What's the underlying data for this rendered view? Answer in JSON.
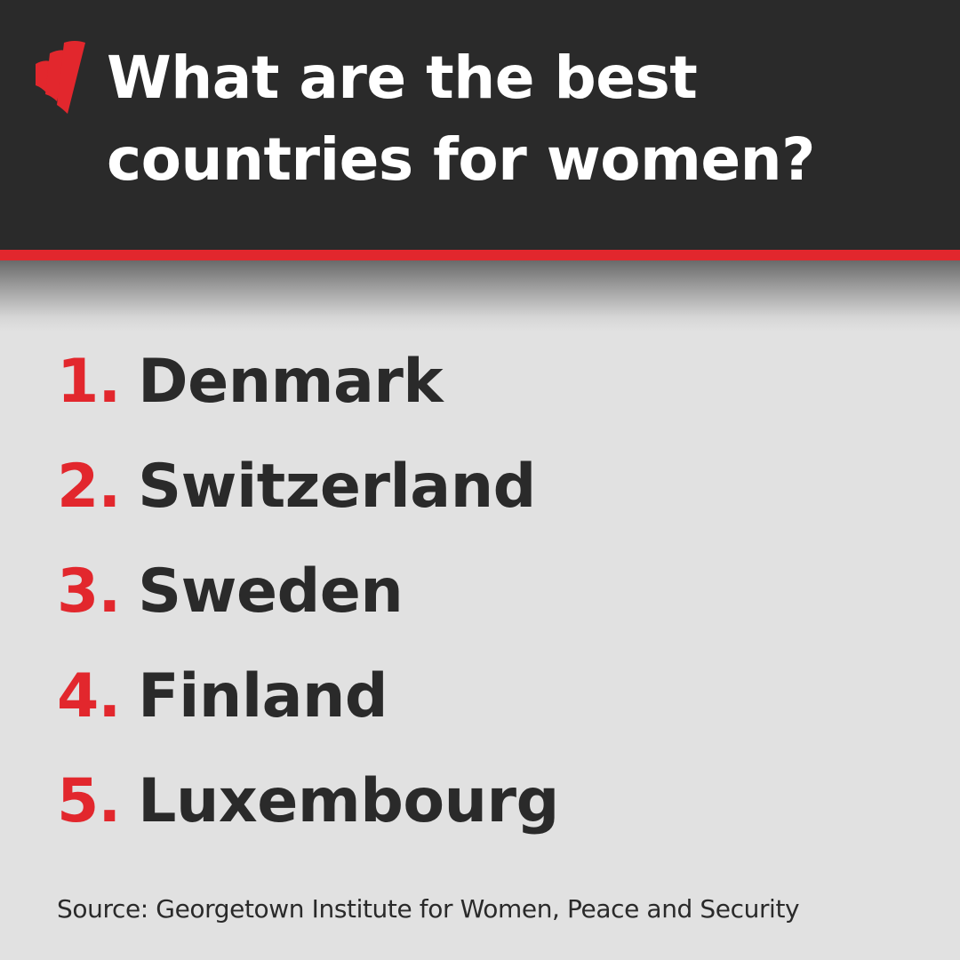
{
  "header": {
    "logo_icon": "sbs-logo-icon",
    "title_line1": "What are the best",
    "title_line2": "countries for women?"
  },
  "ranking": [
    {
      "rank": "1.",
      "country": "Denmark"
    },
    {
      "rank": "2.",
      "country": "Switzerland"
    },
    {
      "rank": "3.",
      "country": "Sweden"
    },
    {
      "rank": "4.",
      "country": "Finland"
    },
    {
      "rank": "5.",
      "country": "Luxembourg"
    }
  ],
  "source": "Source: Georgetown Institute for Women, Peace and Security",
  "colors": {
    "header_bg": "#2a2a2a",
    "accent_red": "#e2272d",
    "body_bg": "#e1e1e1",
    "text_dark": "#2a2a2a",
    "text_light": "#ffffff"
  }
}
